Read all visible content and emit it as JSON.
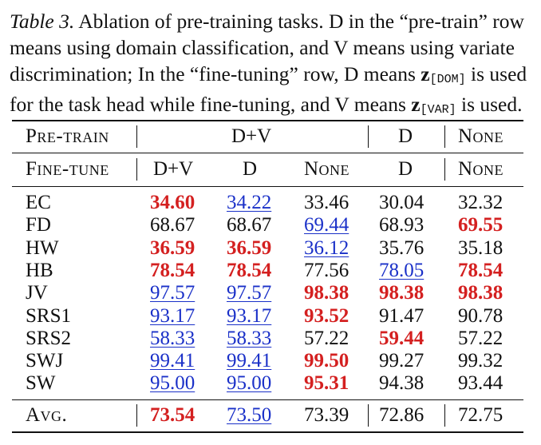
{
  "caption": {
    "tag": "Table 3.",
    "line1_rest": " Ablation of pre-training tasks. D in the “pre-train” row",
    "line2": "means using domain classification, and V means using variate",
    "line3_a": "discrimination; In the “fine-tuning” row, D means ",
    "z_symbol": "z",
    "sub_dom": "[DOM]",
    "line3_b": " is used",
    "line4_a": "for the task head while fine-tuning, and V means ",
    "sub_var": "[VAR]",
    "line4_b": " is used."
  },
  "header": {
    "pretrain_label": "Pre-train",
    "pretrain_groups": [
      "D+V",
      "D",
      "None"
    ],
    "finetune_label": "Fine-tune",
    "finetune_cols": [
      "D+V",
      "D",
      "None",
      "D",
      "None"
    ]
  },
  "rows": [
    {
      "name": "EC",
      "cells": [
        {
          "v": "34.60",
          "s": "best"
        },
        {
          "v": "34.22",
          "s": "second"
        },
        {
          "v": "33.46",
          "s": ""
        },
        {
          "v": "30.04",
          "s": ""
        },
        {
          "v": "32.32",
          "s": ""
        }
      ]
    },
    {
      "name": "FD",
      "cells": [
        {
          "v": "68.67",
          "s": ""
        },
        {
          "v": "68.67",
          "s": ""
        },
        {
          "v": "69.44",
          "s": "second"
        },
        {
          "v": "68.93",
          "s": ""
        },
        {
          "v": "69.55",
          "s": "best"
        }
      ]
    },
    {
      "name": "HW",
      "cells": [
        {
          "v": "36.59",
          "s": "best"
        },
        {
          "v": "36.59",
          "s": "best"
        },
        {
          "v": "36.12",
          "s": "second"
        },
        {
          "v": "35.76",
          "s": ""
        },
        {
          "v": "35.18",
          "s": ""
        }
      ]
    },
    {
      "name": "HB",
      "cells": [
        {
          "v": "78.54",
          "s": "best"
        },
        {
          "v": "78.54",
          "s": "best"
        },
        {
          "v": "77.56",
          "s": ""
        },
        {
          "v": "78.05",
          "s": "second"
        },
        {
          "v": "78.54",
          "s": "best"
        }
      ]
    },
    {
      "name": "JV",
      "cells": [
        {
          "v": "97.57",
          "s": "second"
        },
        {
          "v": "97.57",
          "s": "second"
        },
        {
          "v": "98.38",
          "s": "best"
        },
        {
          "v": "98.38",
          "s": "best"
        },
        {
          "v": "98.38",
          "s": "best"
        }
      ]
    },
    {
      "name": "SRS1",
      "cells": [
        {
          "v": "93.17",
          "s": "second"
        },
        {
          "v": "93.17",
          "s": "second"
        },
        {
          "v": "93.52",
          "s": "best"
        },
        {
          "v": "91.47",
          "s": ""
        },
        {
          "v": "90.78",
          "s": ""
        }
      ]
    },
    {
      "name": "SRS2",
      "cells": [
        {
          "v": "58.33",
          "s": "second"
        },
        {
          "v": "58.33",
          "s": "second"
        },
        {
          "v": "57.22",
          "s": ""
        },
        {
          "v": "59.44",
          "s": "best"
        },
        {
          "v": "57.22",
          "s": ""
        }
      ]
    },
    {
      "name": "SWJ",
      "cells": [
        {
          "v": "99.41",
          "s": "second"
        },
        {
          "v": "99.41",
          "s": "second"
        },
        {
          "v": "99.50",
          "s": "best"
        },
        {
          "v": "99.27",
          "s": ""
        },
        {
          "v": "99.32",
          "s": ""
        }
      ]
    },
    {
      "name": "SW",
      "cells": [
        {
          "v": "95.00",
          "s": "second"
        },
        {
          "v": "95.00",
          "s": "second"
        },
        {
          "v": "95.31",
          "s": "best"
        },
        {
          "v": "94.38",
          "s": ""
        },
        {
          "v": "93.44",
          "s": ""
        }
      ]
    }
  ],
  "avg": {
    "name": "Avg.",
    "cells": [
      {
        "v": "73.54",
        "s": "best"
      },
      {
        "v": "73.50",
        "s": "second"
      },
      {
        "v": "73.39",
        "s": ""
      },
      {
        "v": "72.86",
        "s": ""
      },
      {
        "v": "72.75",
        "s": ""
      }
    ]
  },
  "colors": {
    "best": "#d42020",
    "second": "#1a30c8"
  }
}
